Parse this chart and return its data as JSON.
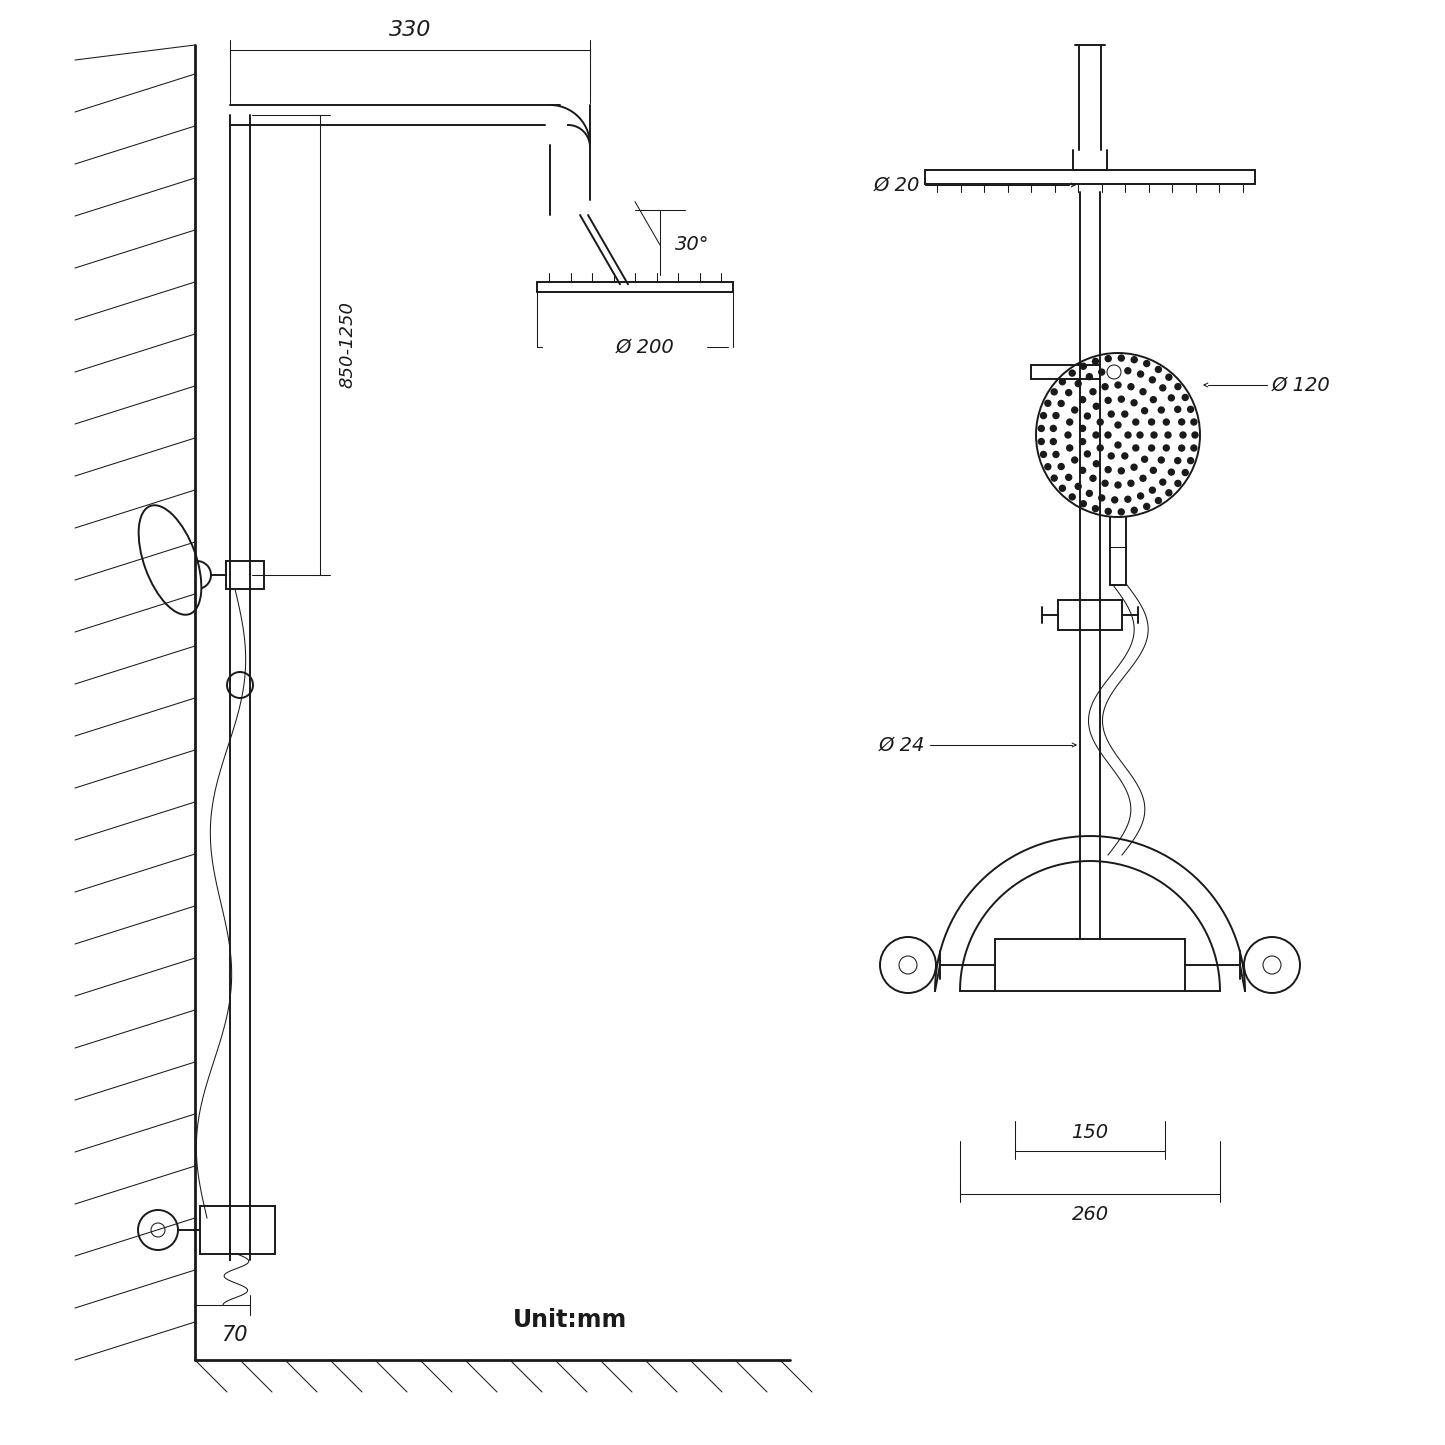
{
  "bg": "#ffffff",
  "lc": "#1a1a1a",
  "lw": 1.4,
  "lw_t": 0.75,
  "lw_k": 2.0,
  "ann": {
    "d330": "330",
    "d200": "Ø 200",
    "ang": "30°",
    "d850": "850-1250",
    "d70": "70",
    "d20": "Ø 20",
    "d120": "Ø 120",
    "d24": "Ø 24",
    "d150": "150",
    "d260": "260",
    "unit": "Unit:mm"
  }
}
